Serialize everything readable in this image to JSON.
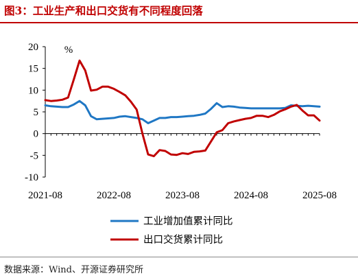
{
  "title": "图3：工业生产和出口交货有不同程度回落",
  "source": "数据来源：Wind、开源证券研究所",
  "chart_data": {
    "type": "line",
    "unit_label": "%",
    "ylim": [
      -10,
      20
    ],
    "yticks": [
      "20",
      "15",
      "10",
      "5",
      "0",
      "-5",
      "-10"
    ],
    "x_tick_labels": [
      "2021-08",
      "2022-08",
      "2023-08",
      "2024-08",
      "2025-08"
    ],
    "x_range": [
      "2021-08",
      "2025-08"
    ],
    "grid": false,
    "legend_position": "bottom",
    "series": [
      {
        "name": "工业增加值累计同比",
        "color": "#1f77c4",
        "points": [
          [
            "2021-08",
            6.5
          ],
          [
            "2021-09",
            6.3
          ],
          [
            "2021-10",
            6.2
          ],
          [
            "2021-11",
            6.1
          ],
          [
            "2021-12",
            6.1
          ],
          [
            "2022-01",
            6.7
          ],
          [
            "2022-02",
            7.5
          ],
          [
            "2022-03",
            6.5
          ],
          [
            "2022-04",
            4.0
          ],
          [
            "2022-05",
            3.3
          ],
          [
            "2022-06",
            3.4
          ],
          [
            "2022-07",
            3.5
          ],
          [
            "2022-08",
            3.6
          ],
          [
            "2022-09",
            3.9
          ],
          [
            "2022-10",
            4.0
          ],
          [
            "2022-11",
            3.8
          ],
          [
            "2022-12",
            3.6
          ],
          [
            "2023-01",
            3.3
          ],
          [
            "2023-02",
            2.4
          ],
          [
            "2023-03",
            3.0
          ],
          [
            "2023-04",
            3.6
          ],
          [
            "2023-05",
            3.6
          ],
          [
            "2023-06",
            3.8
          ],
          [
            "2023-07",
            3.8
          ],
          [
            "2023-08",
            3.9
          ],
          [
            "2023-09",
            4.0
          ],
          [
            "2023-10",
            4.1
          ],
          [
            "2023-11",
            4.3
          ],
          [
            "2023-12",
            4.6
          ],
          [
            "2024-01",
            5.7
          ],
          [
            "2024-02",
            7.0
          ],
          [
            "2024-03",
            6.1
          ],
          [
            "2024-04",
            6.3
          ],
          [
            "2024-05",
            6.2
          ],
          [
            "2024-06",
            6.0
          ],
          [
            "2024-07",
            5.9
          ],
          [
            "2024-08",
            5.8
          ],
          [
            "2024-09",
            5.8
          ],
          [
            "2024-10",
            5.8
          ],
          [
            "2024-11",
            5.8
          ],
          [
            "2024-12",
            5.8
          ],
          [
            "2025-01",
            5.8
          ],
          [
            "2025-02",
            5.9
          ],
          [
            "2025-03",
            6.5
          ],
          [
            "2025-04",
            6.4
          ],
          [
            "2025-05",
            6.3
          ],
          [
            "2025-06",
            6.4
          ],
          [
            "2025-07",
            6.3
          ],
          [
            "2025-08",
            6.2
          ]
        ]
      },
      {
        "name": "出口交货累计同比",
        "color": "#c00000",
        "points": [
          [
            "2021-08",
            7.7
          ],
          [
            "2021-09",
            7.5
          ],
          [
            "2021-10",
            7.6
          ],
          [
            "2021-11",
            7.8
          ],
          [
            "2021-12",
            8.3
          ],
          [
            "2022-01",
            12.5
          ],
          [
            "2022-02",
            16.8
          ],
          [
            "2022-03",
            14.5
          ],
          [
            "2022-04",
            9.9
          ],
          [
            "2022-05",
            10.1
          ],
          [
            "2022-06",
            10.8
          ],
          [
            "2022-07",
            10.8
          ],
          [
            "2022-08",
            10.3
          ],
          [
            "2022-09",
            9.6
          ],
          [
            "2022-10",
            8.8
          ],
          [
            "2022-11",
            7.3
          ],
          [
            "2022-12",
            5.5
          ],
          [
            "2023-01",
            0.0
          ],
          [
            "2023-02",
            -4.8
          ],
          [
            "2023-03",
            -5.2
          ],
          [
            "2023-04",
            -3.8
          ],
          [
            "2023-05",
            -4.0
          ],
          [
            "2023-06",
            -4.8
          ],
          [
            "2023-07",
            -4.9
          ],
          [
            "2023-08",
            -4.5
          ],
          [
            "2023-09",
            -4.7
          ],
          [
            "2023-10",
            -4.2
          ],
          [
            "2023-11",
            -4.1
          ],
          [
            "2023-12",
            -3.9
          ],
          [
            "2024-01",
            -1.8
          ],
          [
            "2024-02",
            0.3
          ],
          [
            "2024-03",
            0.8
          ],
          [
            "2024-04",
            2.4
          ],
          [
            "2024-05",
            2.8
          ],
          [
            "2024-06",
            3.1
          ],
          [
            "2024-07",
            3.4
          ],
          [
            "2024-08",
            3.6
          ],
          [
            "2024-09",
            4.1
          ],
          [
            "2024-10",
            4.1
          ],
          [
            "2024-11",
            3.8
          ],
          [
            "2024-12",
            4.3
          ],
          [
            "2025-01",
            5.1
          ],
          [
            "2025-02",
            5.6
          ],
          [
            "2025-03",
            6.2
          ],
          [
            "2025-04",
            6.6
          ],
          [
            "2025-05",
            5.3
          ],
          [
            "2025-06",
            4.2
          ],
          [
            "2025-07",
            4.2
          ],
          [
            "2025-08",
            3.0
          ]
        ]
      }
    ]
  }
}
